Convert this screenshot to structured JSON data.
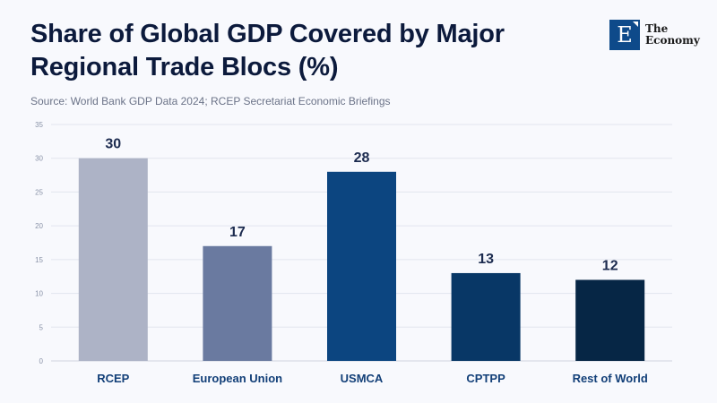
{
  "header": {
    "title": "Share of Global GDP Covered by Major Regional Trade Blocs (%)",
    "source": "Source: World Bank GDP Data 2024; RCEP Secretariat Economic Briefings"
  },
  "logo": {
    "letter": "E",
    "line1": "The",
    "line2": "Economy"
  },
  "chart_data": {
    "type": "bar",
    "title": "Share of Global GDP Covered by Major Regional Trade Blocs (%)",
    "xlabel": "",
    "ylabel": "",
    "categories": [
      "RCEP",
      "European Union",
      "USMCA",
      "CPTPP",
      "Rest of World"
    ],
    "values": [
      30,
      17,
      28,
      13,
      12
    ],
    "colors": [
      "#adb3c6",
      "#6a7aa0",
      "#0c4580",
      "#083766",
      "#062645"
    ],
    "ylim": [
      0,
      35
    ],
    "yticks": [
      0,
      5,
      10,
      15,
      20,
      25,
      30,
      35
    ],
    "grid": true,
    "legend": "none",
    "data_labels": true
  }
}
